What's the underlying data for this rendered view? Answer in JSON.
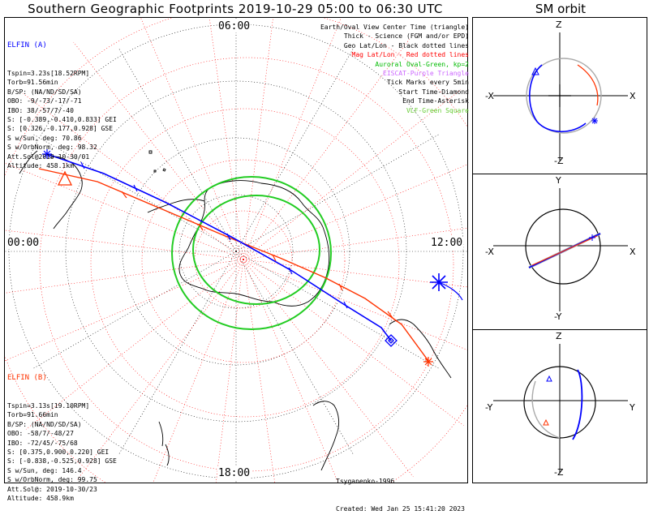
{
  "title": "Southern Geographic Footprints 2019-10-29 05:00 to 06:30 UTC",
  "sm_title": "SM orbit",
  "hour_labels": {
    "top": "06:00",
    "left": "00:00",
    "right": "12:00",
    "bottom": "18:00"
  },
  "elfin_a": {
    "name": "ELFIN (A)",
    "color": "#0000ff",
    "lines": [
      "Tspin=3.23s[18.52RPM]",
      "Torb=91.56min",
      "B/SP: (NA/ND/SD/SA)",
      "OBO: -9/-73/-17/-71",
      "IBO: 38/-57/7/-40",
      "S: [-0.389,-0.410,0.833] GEI",
      "S: [0.326,-0.177,0.928] GSE",
      "S w/Sun, deg: 70.86",
      "S w/OrbNorm, deg: 98.32",
      "Att.Sol@2019-10-30/01",
      "Altitude: 458.1km"
    ]
  },
  "elfin_b": {
    "name": "ELFIN (B)",
    "color": "#ff0000",
    "lines": [
      "Tspin=3.13s[19.10RPM]",
      "Torb=91.66min",
      "B/SP: (NA/ND/SD/SA)",
      "OBO: -58/7/-48/27",
      "IBO: -72/45/-75/68",
      "S: [0.375,0.900,0.220] GEI",
      "S: [-0.838,-0.525,0.928] GSE",
      "S w/Sun, deg: 146.4",
      "S w/OrbNorm, deg: 99.75",
      "Att.Sol@: 2019-10-30/23",
      "Altitude: 458.9km"
    ]
  },
  "legend": [
    {
      "text": "Earth/Oval View Center Time (triangle)",
      "color": "#000000"
    },
    {
      "text": "Thick - Science (FGM and/or EPD)",
      "color": "#000000"
    },
    {
      "text": "Geo Lat/Lon - Black dotted lines",
      "color": "#000000"
    },
    {
      "text": "Mag Lat/Lon - Red dotted lines",
      "color": "#ff0000"
    },
    {
      "text": "Auroral Oval-Green, kp=2",
      "color": "#00bb00"
    },
    {
      "text": "EISCAT-Purple Triangle",
      "color": "#cc66ff"
    },
    {
      "text": "Tick Marks every 5min",
      "color": "#000000"
    },
    {
      "text": "Start Time-Diamond",
      "color": "#000000"
    },
    {
      "text": "End Time-Asterisk",
      "color": "#000000"
    },
    {
      "text": "VLF-Green Square",
      "color": "#66cc33"
    }
  ],
  "footer": {
    "credit": "Tsyganenko-1996",
    "created": "Created: Wed Jan 25 15:41:20 2023"
  },
  "sm_panels": [
    {
      "top": "Z",
      "bottom": "-Z",
      "left": "-X",
      "right": "X"
    },
    {
      "top": "Y",
      "bottom": "-Y",
      "left": "-X",
      "right": "X"
    },
    {
      "top": "Z",
      "bottom": "-Z",
      "left": "-Y",
      "right": "Y"
    }
  ],
  "colors": {
    "geo_grid": "#000000",
    "mag_grid": "#ff0000",
    "auroral_oval": "#22cc22",
    "orbit_a": "#0000ff",
    "orbit_b": "#ff3300",
    "orbit_other": "#aaaaaa"
  }
}
